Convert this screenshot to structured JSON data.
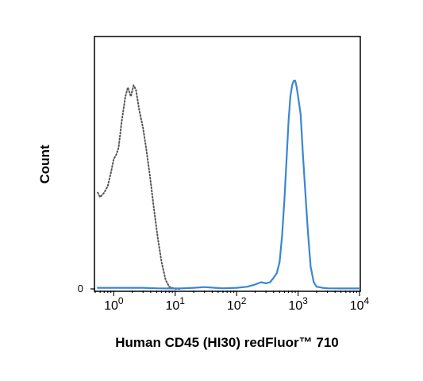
{
  "chart_data": {
    "type": "line",
    "xlabel": "Human CD45 (HI30) redFluor™ 710",
    "ylabel": "Count",
    "xscale": "log",
    "xlim": [
      0.5,
      10000
    ],
    "ylim": [
      0,
      100
    ],
    "y_ticks": [
      {
        "value": 0,
        "label": "0"
      }
    ],
    "x_ticks": [
      {
        "value": 1,
        "base": "10",
        "exp": "0"
      },
      {
        "value": 10,
        "base": "10",
        "exp": "1"
      },
      {
        "value": 100,
        "base": "10",
        "exp": "2"
      },
      {
        "value": 1000,
        "base": "10",
        "exp": "3"
      },
      {
        "value": 10000,
        "base": "10",
        "exp": "4"
      }
    ],
    "grid": false,
    "series": [
      {
        "style": "dotted",
        "color": "#555555",
        "x": [
          0.55,
          0.6,
          0.7,
          0.8,
          0.9,
          1.0,
          1.1,
          1.2,
          1.35,
          1.55,
          1.7,
          1.9,
          2.1,
          2.3,
          2.6,
          3.0,
          3.4,
          3.9,
          4.5,
          5.2,
          6.0,
          7.0,
          8.0,
          9.0,
          10.0,
          12.0
        ],
        "y": [
          43,
          41,
          43,
          46,
          52,
          58,
          60,
          63,
          75,
          86,
          90,
          86,
          91,
          89,
          80,
          72,
          62,
          50,
          36,
          23,
          12,
          4,
          1,
          0.5,
          0,
          0
        ]
      },
      {
        "style": "solid",
        "color": "#3a86d4",
        "x": [
          0.55,
          1,
          2,
          3,
          5,
          8,
          12,
          20,
          30,
          45,
          60,
          100,
          150,
          200,
          250,
          300,
          350,
          400,
          450,
          500,
          550,
          600,
          650,
          700,
          750,
          800,
          850,
          900,
          950,
          1000,
          1100,
          1200,
          1300,
          1450,
          1600,
          1800,
          2000,
          2500,
          3000,
          5000,
          10000
        ],
        "y": [
          0.5,
          0.5,
          0.5,
          0.5,
          0.3,
          0.2,
          0.2,
          0.5,
          0.8,
          0.5,
          0.3,
          0.5,
          1,
          2,
          3,
          2.5,
          3,
          5,
          7,
          12,
          24,
          40,
          58,
          75,
          86,
          91,
          93,
          93,
          90,
          86,
          78,
          60,
          45,
          25,
          10,
          3,
          1,
          0.5,
          0.3,
          0.2,
          0.2
        ]
      }
    ]
  }
}
